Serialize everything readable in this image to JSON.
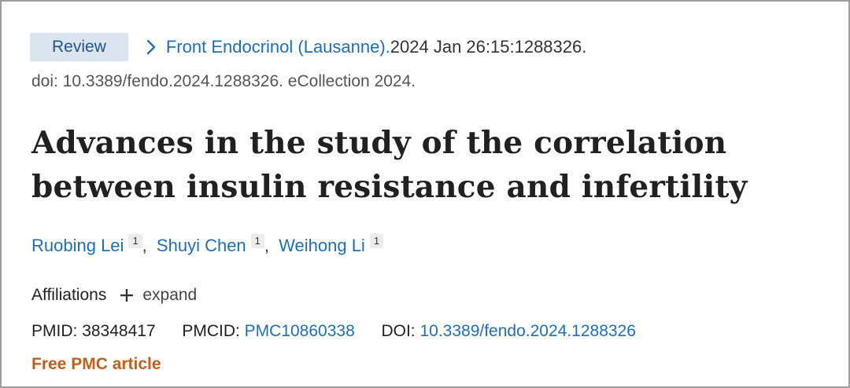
{
  "header": {
    "badge": "Review",
    "journal": "Front Endocrinol (Lausanne).",
    "pub_info": " 2024 Jan 26:15:1288326.",
    "doi_line": "doi: 10.3389/fendo.2024.1288326. eCollection 2024."
  },
  "article": {
    "title": "Advances in the study of the correlation between insulin resistance and infertility"
  },
  "authors": [
    {
      "name": "Ruobing Lei",
      "sup": "1"
    },
    {
      "name": "Shuyi Chen",
      "sup": "1"
    },
    {
      "name": "Weihong Li",
      "sup": "1"
    }
  ],
  "affiliations": {
    "label": "Affiliations",
    "expand": "expand"
  },
  "identifiers": {
    "pmid_label": "PMID:",
    "pmid": "38348417",
    "pmcid_label": "PMCID:",
    "pmcid": "PMC10860338",
    "doi_label": "DOI:",
    "doi": "10.3389/fendo.2024.1288326"
  },
  "free_article": "Free PMC article",
  "icons": {
    "chevron": "chevron-right-icon",
    "plus": "plus-icon"
  },
  "colors": {
    "link": "#1f6fb2",
    "badge_bg": "#dbe4ef",
    "free": "#c0601e"
  }
}
